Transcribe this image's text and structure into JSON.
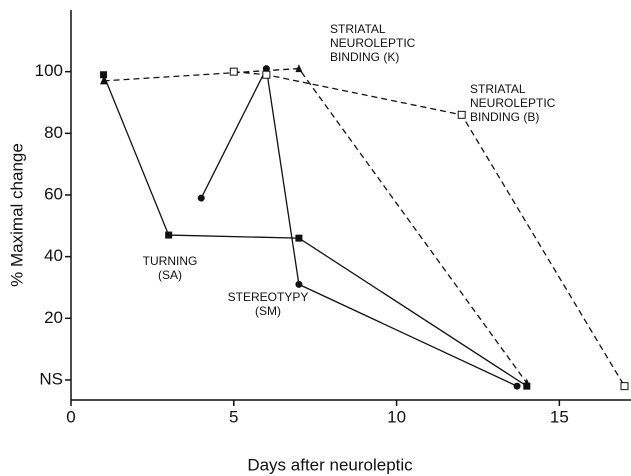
{
  "chart_data": {
    "type": "line",
    "xlabel": "Days after neuroleptic",
    "ylabel": "% Maximal change",
    "xlim": [
      0,
      17.2
    ],
    "ylim": [
      -6.5,
      120
    ],
    "xticks": [
      0,
      5,
      10,
      15
    ],
    "yticks": [
      {
        "value": 0,
        "label": "NS"
      },
      20,
      40,
      60,
      80,
      100
    ],
    "series": [
      {
        "name": [
          "TURNING",
          "(SA)"
        ],
        "color": "#111",
        "marker": "square",
        "dashed": false,
        "x": [
          1,
          3,
          7,
          14
        ],
        "values": [
          99,
          47,
          46,
          -2
        ]
      },
      {
        "name": [
          "STEREOTYPY",
          "(SM)"
        ],
        "color": "#111",
        "marker": "circle",
        "dashed": false,
        "x": [
          4,
          6,
          7,
          13.7
        ],
        "values": [
          59,
          101,
          31,
          -2
        ]
      },
      {
        "name": [
          "STRIATAL",
          "NEUROLEPTIC",
          "BINDING (K)"
        ],
        "color": "#111",
        "marker": "triangle",
        "dashed": true,
        "x": [
          1,
          7,
          14
        ],
        "values": [
          97,
          101,
          -1
        ]
      },
      {
        "name": [
          "STRIATAL",
          "NEUROLEPTIC",
          "BINDING (B)"
        ],
        "color": "#111",
        "marker": "open-square",
        "dashed": true,
        "x": [
          5,
          6,
          12,
          17
        ],
        "values": [
          100,
          99,
          86,
          -2
        ]
      }
    ]
  }
}
